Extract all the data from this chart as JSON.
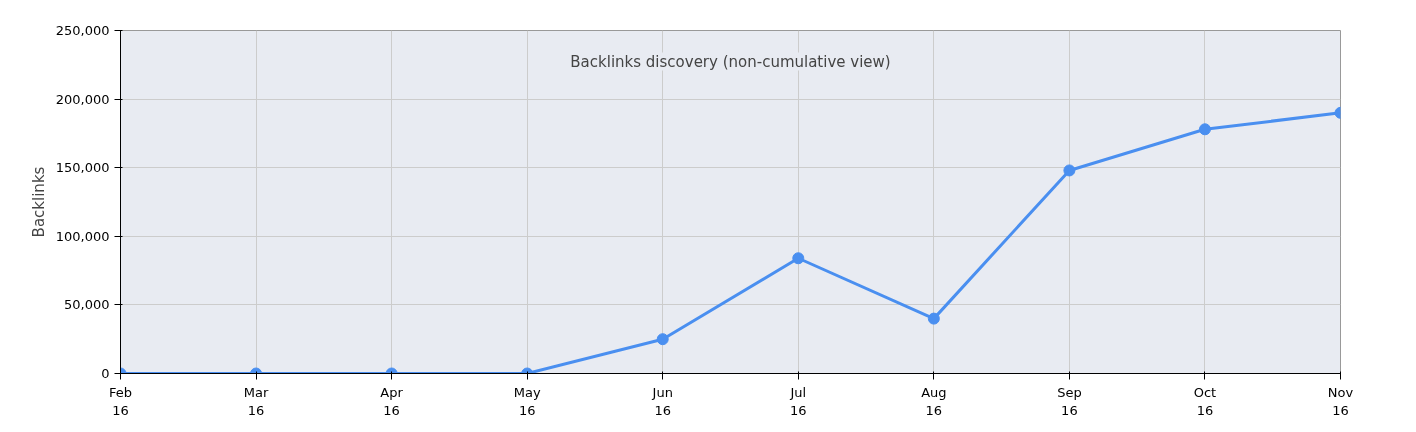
{
  "chart_data": {
    "type": "line",
    "title": "Backlinks discovery (non-cumulative view)",
    "ylabel": "Backlinks",
    "categories": [
      "Feb\n16",
      "Mar\n16",
      "Apr\n16",
      "May\n16",
      "Jun\n16",
      "Jul\n16",
      "Aug\n16",
      "Sep\n16",
      "Oct\n16",
      "Nov\n16"
    ],
    "series": [
      {
        "color": "#4a8ff0",
        "values": [
          0,
          0,
          0,
          0,
          25000,
          84000,
          40000,
          148000,
          178000,
          190000
        ]
      }
    ],
    "ylim": [
      0,
      250000
    ],
    "yticks": [
      {
        "value": 0,
        "label": "0"
      },
      {
        "value": 50000,
        "label": "50,000"
      },
      {
        "value": 100000,
        "label": "100,000"
      },
      {
        "value": 150000,
        "label": "150,000"
      },
      {
        "value": 200000,
        "label": "200,000"
      },
      {
        "value": 250000,
        "label": "250,000"
      }
    ],
    "grid": true,
    "marker": "circle",
    "line_style": "solid"
  }
}
